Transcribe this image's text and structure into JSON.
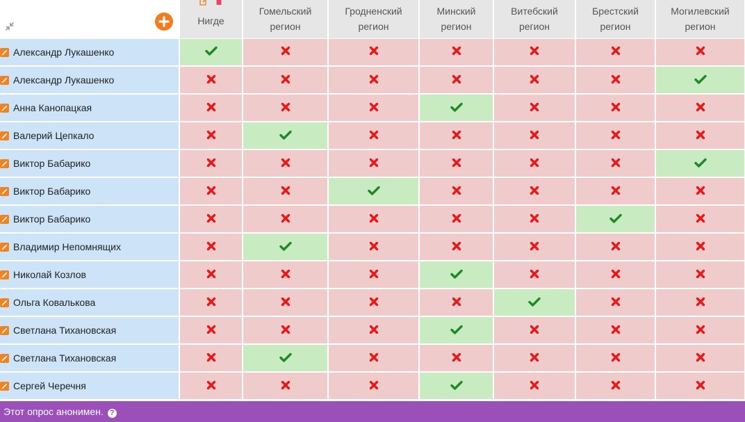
{
  "header": {
    "columns": [
      "Нигде",
      "Гомельский регион",
      "Гродненский регион",
      "Минский регион",
      "Витебский регион",
      "Брестский регион",
      "Могилевский регион"
    ]
  },
  "rows": [
    {
      "name": "Александр Лукашенко",
      "choice": 0
    },
    {
      "name": "Александр Лукашенко",
      "choice": 6
    },
    {
      "name": "Анна Канопацкая",
      "choice": 3
    },
    {
      "name": "Валерий Цепкало",
      "choice": 1
    },
    {
      "name": "Виктор Бабарико",
      "choice": 6
    },
    {
      "name": "Виктор Бабарико",
      "choice": 2
    },
    {
      "name": "Виктор Бабарико",
      "choice": 5
    },
    {
      "name": "Владимир Непомнящих",
      "choice": 1
    },
    {
      "name": "Николай Козлов",
      "choice": 3
    },
    {
      "name": "Ольга Ковалькова",
      "choice": 4
    },
    {
      "name": "Светлана Тихановская",
      "choice": 3
    },
    {
      "name": "Светлана Тихановская",
      "choice": 1
    },
    {
      "name": "Сергей Черечня",
      "choice": 3
    }
  ],
  "footer": {
    "text": "Этот опрос анонимен."
  },
  "icons": {
    "edit": "edit-icon",
    "add": "add-circle-icon",
    "compress": "compress-arrows-icon",
    "check": "check-icon",
    "cross": "cross-icon",
    "help": "help-icon",
    "delete": "trash-icon"
  },
  "colors": {
    "yes_bg": "#c9ebc2",
    "no_bg": "#efcbcb",
    "name_bg": "#cce3f8",
    "check": "#1f8a24",
    "cross": "#e81818",
    "accent": "#f47b20",
    "footer_bg": "#9a4fb9"
  }
}
